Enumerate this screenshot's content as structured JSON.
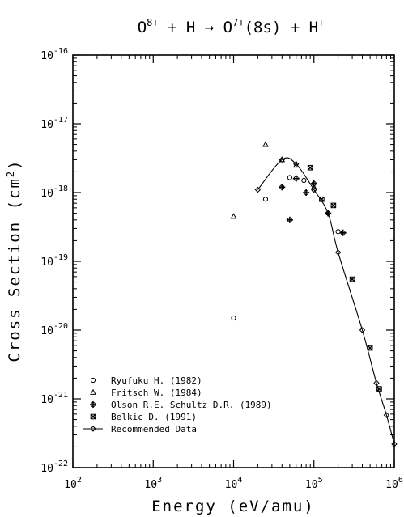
{
  "chart_data": {
    "type": "scatter",
    "title": "O8+ + H → O7+(8s) + H+",
    "xlabel": "Energy (eV/amu)",
    "ylabel": "Cross Section (cm2)",
    "xscale": "log",
    "yscale": "log",
    "xlim": [
      100,
      1000000
    ],
    "ylim": [
      1e-22,
      1e-16
    ],
    "x_ticks": [
      "10^2",
      "10^3",
      "10^4",
      "10^5",
      "10^6"
    ],
    "y_ticks": [
      "10^-22",
      "10^-21",
      "10^-20",
      "10^-19",
      "10^-18",
      "10^-17",
      "10^-16"
    ],
    "legend_position": "bottom-left",
    "series": [
      {
        "name": "Ryufuku H. (1982)",
        "marker": "circle",
        "points": [
          [
            10000,
            1.5e-20
          ],
          [
            25000,
            8e-19
          ],
          [
            50000,
            1.65e-18
          ],
          [
            75000,
            1.5e-18
          ],
          [
            100000,
            1.1e-18
          ],
          [
            200000,
            2.7e-19
          ]
        ]
      },
      {
        "name": "Fritsch W. (1984)",
        "marker": "triangle",
        "points": [
          [
            10000,
            4.5e-19
          ],
          [
            25000,
            5e-18
          ],
          [
            40000,
            3e-18
          ],
          [
            60000,
            2.5e-18
          ],
          [
            100000,
            1.2e-18
          ]
        ]
      },
      {
        "name": "Olson R.E. Schultz D.R. (1989)",
        "marker": "plus-circle",
        "points": [
          [
            40000,
            1.2e-18
          ],
          [
            50000,
            4e-19
          ],
          [
            60000,
            1.6e-18
          ],
          [
            80000,
            1e-18
          ],
          [
            100000,
            1.35e-18
          ],
          [
            150000,
            5e-19
          ],
          [
            230000,
            2.6e-19
          ]
        ]
      },
      {
        "name": "Belkic D. (1991)",
        "marker": "x-box",
        "points": [
          [
            90000,
            2.3e-18
          ],
          [
            125000,
            8e-19
          ],
          [
            175000,
            6.5e-19
          ],
          [
            300000,
            5.5e-20
          ],
          [
            500000,
            5.5e-21
          ],
          [
            650000,
            1.4e-21
          ]
        ]
      },
      {
        "name": "Recommended Data",
        "marker": "diamond-line",
        "points": [
          [
            20000,
            1.1e-18
          ],
          [
            40000,
            3e-18
          ],
          [
            60000,
            2.6e-18
          ],
          [
            100000,
            1.1e-18
          ],
          [
            150000,
            5e-19
          ],
          [
            200000,
            1.35e-19
          ],
          [
            400000,
            1e-20
          ],
          [
            600000,
            1.7e-21
          ],
          [
            800000,
            5.8e-22
          ],
          [
            1000000,
            2.2e-22
          ]
        ]
      }
    ]
  }
}
